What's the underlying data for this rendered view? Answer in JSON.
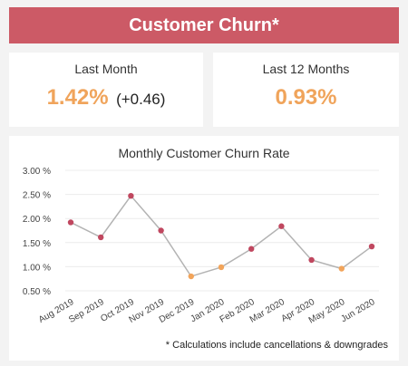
{
  "header": {
    "title": "Customer Churn*"
  },
  "kpis": {
    "last_month": {
      "label": "Last Month",
      "value": "1.42%",
      "delta": "(+0.46)"
    },
    "last_12_months": {
      "label": "Last 12 Months",
      "value": "0.93%"
    }
  },
  "colors": {
    "header_bg": "#cc5a66",
    "kpi_value": "#f0a45b",
    "point_red": "#c0475f",
    "point_orange": "#f2a45a",
    "line": "#b3b3b3"
  },
  "chart_data": {
    "type": "line",
    "title": "Monthly Customer Churn Rate",
    "categories": [
      "Aug 2019",
      "Sep 2019",
      "Oct 2019",
      "Nov 2019",
      "Dec 2019",
      "Jan 2020",
      "Feb 2020",
      "Mar 2020",
      "Apr 2020",
      "May 2020",
      "Jun 2020"
    ],
    "values": [
      1.92,
      1.61,
      2.47,
      1.75,
      0.8,
      0.99,
      1.37,
      1.84,
      1.14,
      0.96,
      1.42
    ],
    "point_colors": [
      "red",
      "red",
      "red",
      "red",
      "orange",
      "orange",
      "red",
      "red",
      "red",
      "orange",
      "red"
    ],
    "yticks": [
      "3.00 %",
      "2.50 %",
      "2.00 %",
      "1.50 %",
      "1.00 %",
      "0.50 %"
    ],
    "ytick_values": [
      3.0,
      2.5,
      2.0,
      1.5,
      1.0,
      0.5
    ],
    "ylim": [
      0.5,
      3.0
    ],
    "xlabel": "",
    "ylabel": ""
  },
  "footnote": "* Calculations include cancellations & downgrades"
}
